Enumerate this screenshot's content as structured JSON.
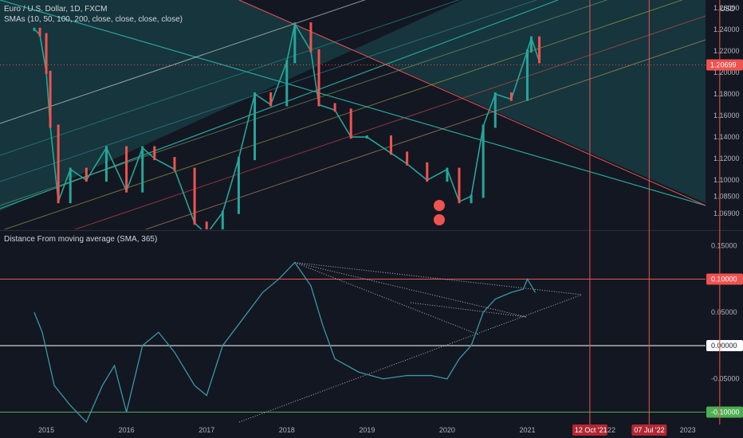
{
  "header": {
    "symbol_title": "Euro / U.S. Dollar, 1D, FXCM",
    "sma_legend": "SMAs (10, 50, 100, 200, close, close, close, close)",
    "currency": "USD"
  },
  "indicator": {
    "title": "Distance From moving average (SMA, 365)"
  },
  "colors": {
    "background": "#131722",
    "teal_channel": "#26a69a",
    "red_line": "#ef5350",
    "indicator_line": "#3a97a8",
    "price_up": "#26a69a",
    "price_down": "#ef5350"
  },
  "chart_data": [
    {
      "type": "line",
      "title": "Euro / U.S. Dollar, 1D, FXCM",
      "ylim": [
        1.055,
        1.265
      ],
      "y_ticks": [
        "1.26000",
        "1.24000",
        "1.22000",
        "1.20000",
        "1.18000",
        "1.16000",
        "1.14000",
        "1.12000",
        "1.10000",
        "1.08500",
        "1.06900"
      ],
      "last_price_label": "1.20699",
      "x": [
        2014.85,
        2014.92,
        2015.0,
        2015.05,
        2015.15,
        2015.3,
        2015.5,
        2015.75,
        2016.0,
        2016.2,
        2016.35,
        2016.6,
        2016.85,
        2017.0,
        2017.2,
        2017.4,
        2017.6,
        2017.8,
        2018.0,
        2018.1,
        2018.3,
        2018.4,
        2018.6,
        2018.8,
        2019.0,
        2019.3,
        2019.5,
        2019.75,
        2020.0,
        2020.15,
        2020.3,
        2020.45,
        2020.6,
        2020.8,
        2021.0,
        2021.05,
        2021.15
      ],
      "values": [
        1.24,
        1.235,
        1.2,
        1.15,
        1.08,
        1.11,
        1.1,
        1.13,
        1.09,
        1.13,
        1.12,
        1.11,
        1.06,
        1.05,
        1.07,
        1.12,
        1.18,
        1.17,
        1.21,
        1.245,
        1.22,
        1.17,
        1.165,
        1.14,
        1.14,
        1.125,
        1.115,
        1.1,
        1.11,
        1.08,
        1.085,
        1.15,
        1.18,
        1.175,
        1.22,
        1.232,
        1.21
      ]
    },
    {
      "type": "line",
      "title": "Distance From moving average (SMA, 365)",
      "ylim": [
        -0.115,
        0.17
      ],
      "y_ticks": [
        "0.15000",
        "0.10000",
        "0.05000",
        "0.00000",
        "-0.05000",
        "-0.10000"
      ],
      "highlighted_levels": [
        0.1,
        0.0,
        -0.1
      ],
      "x_ticks": [
        "2015",
        "2016",
        "2017",
        "2018",
        "2019",
        "2020",
        "2021",
        "2022",
        "2023"
      ],
      "x_markers": [
        "12 Oct '21",
        "07 Jul '22"
      ],
      "x": [
        2014.85,
        2014.95,
        2015.1,
        2015.3,
        2015.5,
        2015.7,
        2015.85,
        2016.0,
        2016.2,
        2016.4,
        2016.6,
        2016.85,
        2017.0,
        2017.2,
        2017.45,
        2017.7,
        2017.9,
        2018.1,
        2018.3,
        2018.45,
        2018.6,
        2018.9,
        2019.2,
        2019.5,
        2019.8,
        2020.0,
        2020.15,
        2020.3,
        2020.45,
        2020.6,
        2020.8,
        2020.95,
        2021.0,
        2021.1
      ],
      "values": [
        0.05,
        0.02,
        -0.06,
        -0.09,
        -0.115,
        -0.06,
        -0.03,
        -0.1,
        0.0,
        0.02,
        -0.01,
        -0.06,
        -0.075,
        0.0,
        0.04,
        0.08,
        0.1,
        0.125,
        0.09,
        0.03,
        -0.02,
        -0.04,
        -0.05,
        -0.045,
        -0.045,
        -0.05,
        -0.02,
        0.0,
        0.05,
        0.07,
        0.08,
        0.085,
        0.1,
        0.08
      ]
    }
  ]
}
